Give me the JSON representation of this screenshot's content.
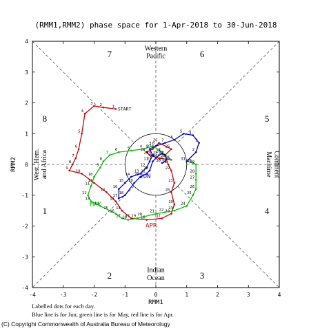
{
  "chart_data": {
    "type": "line",
    "title": "(RMM1,RMM2) phase space for  1-Apr-2018 to 30-Jun-2018",
    "xlabel": "RMM1",
    "ylabel": "RMM2",
    "xlim": [
      -4,
      4
    ],
    "ylim": [
      -4,
      4
    ],
    "xticks": [
      "-4",
      "-3",
      "-2",
      "-1",
      "0",
      "1",
      "2",
      "3",
      "4"
    ],
    "yticks": [
      "-4",
      "-3",
      "-2",
      "-1",
      "0",
      "1",
      "2",
      "3",
      "4"
    ],
    "phases": [
      "1",
      "2",
      "3",
      "4",
      "5",
      "6",
      "7",
      "8"
    ],
    "regions": {
      "top": [
        "Western",
        "Pacific"
      ],
      "bottom": [
        "Indian",
        "Ocean"
      ],
      "left": [
        "West. Hem.",
        "and Africa"
      ],
      "right": [
        "Maritime",
        "Continent"
      ]
    },
    "start_label": "START",
    "series": [
      {
        "name": "APR",
        "color": "#cc0000",
        "points": [
          [
            -1.3,
            1.8
          ],
          [
            -1.7,
            1.85
          ],
          [
            -2.0,
            1.9
          ],
          [
            -2.3,
            1.65
          ],
          [
            -2.4,
            1.0
          ],
          [
            -2.5,
            0.5
          ],
          [
            -2.6,
            0.2
          ],
          [
            -2.7,
            0.0
          ],
          [
            -2.8,
            -0.2
          ],
          [
            -2.4,
            -0.3
          ],
          [
            -2.0,
            -0.6
          ],
          [
            -1.6,
            -0.9
          ],
          [
            -1.3,
            -1.2
          ],
          [
            -1.1,
            -1.5
          ],
          [
            -0.8,
            -1.75
          ],
          [
            -0.3,
            -1.8
          ],
          [
            0.2,
            -1.75
          ],
          [
            0.5,
            -1.6
          ],
          [
            0.6,
            -1.3
          ],
          [
            0.5,
            -0.9
          ],
          [
            0.6,
            -0.6
          ],
          [
            0.5,
            -0.2
          ],
          [
            0.4,
            0.0
          ],
          [
            0.3,
            0.3
          ],
          [
            0.5,
            0.5
          ],
          [
            0.1,
            0.7
          ],
          [
            -0.1,
            0.5
          ],
          [
            -0.3,
            0.4
          ],
          [
            -0.2,
            0.3
          ],
          [
            0.1,
            0.2
          ],
          [
            0.5,
            0.15
          ]
        ],
        "labels": [
          [
            1,
            "1"
          ],
          [
            2,
            "2"
          ],
          [
            3,
            "3"
          ],
          [
            4,
            "4"
          ],
          [
            5,
            "5"
          ],
          [
            6,
            "6"
          ],
          [
            7,
            "7"
          ],
          [
            8,
            "8"
          ],
          [
            9,
            "9"
          ],
          [
            10,
            "10"
          ],
          [
            11,
            "11"
          ],
          [
            12,
            "12"
          ],
          [
            13,
            "13"
          ],
          [
            14,
            "14"
          ],
          [
            15,
            "15"
          ],
          [
            16,
            "16"
          ],
          [
            17,
            "17"
          ],
          [
            18,
            "18"
          ],
          [
            19,
            "19"
          ],
          [
            20,
            "20"
          ],
          [
            21,
            "21"
          ],
          [
            22,
            "22"
          ],
          [
            23,
            "23"
          ],
          [
            24,
            "24"
          ],
          [
            25,
            "25"
          ],
          [
            26,
            "26"
          ],
          [
            27,
            "27"
          ],
          [
            28,
            "28"
          ],
          [
            29,
            "29"
          ],
          [
            30,
            "30"
          ]
        ],
        "end_label": "APR"
      },
      {
        "name": "MAY",
        "color": "#00bb00",
        "points": [
          [
            0.5,
            0.15
          ],
          [
            0.2,
            0.4
          ],
          [
            -0.1,
            0.6
          ],
          [
            -0.4,
            0.5
          ],
          [
            -0.8,
            0.45
          ],
          [
            -1.2,
            0.4
          ],
          [
            -1.5,
            0.3
          ],
          [
            -1.7,
            0.1
          ],
          [
            -1.8,
            -0.1
          ],
          [
            -2.0,
            -0.4
          ],
          [
            -2.1,
            -0.7
          ],
          [
            -2.2,
            -1.0
          ],
          [
            -2.1,
            -1.2
          ],
          [
            -1.8,
            -1.35
          ],
          [
            -1.5,
            -1.5
          ],
          [
            -1.3,
            -1.6
          ],
          [
            -1.1,
            -1.75
          ],
          [
            -0.9,
            -1.8
          ],
          [
            -0.6,
            -1.75
          ],
          [
            -0.4,
            -1.7
          ],
          [
            0.0,
            -1.6
          ],
          [
            0.3,
            -1.55
          ],
          [
            0.6,
            -1.5
          ],
          [
            1.0,
            -1.35
          ],
          [
            1.2,
            -1.0
          ],
          [
            1.3,
            -0.8
          ],
          [
            1.3,
            -0.5
          ],
          [
            1.3,
            -0.3
          ],
          [
            1.3,
            0.0
          ],
          [
            1.2,
            0.05
          ],
          [
            1.0,
            0.1
          ]
        ],
        "labels": [
          [
            1,
            "1"
          ],
          [
            2,
            "2"
          ],
          [
            3,
            "3"
          ],
          [
            4,
            "4"
          ],
          [
            5,
            "5"
          ],
          [
            6,
            "6"
          ],
          [
            7,
            "7"
          ],
          [
            8,
            "8"
          ],
          [
            9,
            "9"
          ],
          [
            10,
            "10"
          ],
          [
            11,
            "11"
          ],
          [
            12,
            "12"
          ],
          [
            13,
            "13"
          ],
          [
            14,
            "14"
          ],
          [
            15,
            "15"
          ],
          [
            16,
            "16"
          ],
          [
            17,
            "17"
          ],
          [
            18,
            "18"
          ],
          [
            19,
            "19"
          ],
          [
            20,
            "20"
          ],
          [
            21,
            "21"
          ],
          [
            22,
            "22"
          ],
          [
            23,
            "23"
          ],
          [
            24,
            "24"
          ],
          [
            25,
            "25"
          ],
          [
            26,
            "26"
          ],
          [
            27,
            "27"
          ],
          [
            28,
            "28"
          ],
          [
            29,
            "29"
          ],
          [
            30,
            "30"
          ],
          [
            31,
            "31"
          ]
        ],
        "end_label": "MAY"
      },
      {
        "name": "JUN",
        "color": "#0000cc",
        "points": [
          [
            1.0,
            0.1
          ],
          [
            1.3,
            0.4
          ],
          [
            1.4,
            0.7
          ],
          [
            1.2,
            0.95
          ],
          [
            0.9,
            1.0
          ],
          [
            0.6,
            0.8
          ],
          [
            0.3,
            0.7
          ],
          [
            0.0,
            0.6
          ],
          [
            -0.2,
            0.5
          ],
          [
            -0.1,
            0.3
          ],
          [
            -0.2,
            0.1
          ],
          [
            -0.3,
            -0.1
          ],
          [
            -0.5,
            -0.3
          ],
          [
            -0.8,
            -0.4
          ],
          [
            -1.0,
            -0.6
          ],
          [
            -1.2,
            -0.8
          ],
          [
            -1.2,
            -1.1
          ],
          [
            -1.0,
            -1.0
          ],
          [
            -0.7,
            -0.6
          ],
          [
            -0.5,
            -0.4
          ],
          [
            -0.3,
            -0.3
          ],
          [
            -0.2,
            -0.2
          ],
          [
            -0.1,
            0.1
          ],
          [
            0.0,
            0.2
          ],
          [
            0.1,
            0.3
          ],
          [
            0.2,
            0.35
          ],
          [
            0.3,
            0.3
          ],
          [
            0.35,
            0.2
          ],
          [
            0.3,
            0.1
          ],
          [
            0.2,
            0.05
          ]
        ],
        "labels": [
          [
            1,
            "1"
          ],
          [
            2,
            "2"
          ],
          [
            3,
            "3"
          ],
          [
            4,
            "4"
          ],
          [
            5,
            "5"
          ],
          [
            6,
            "6"
          ],
          [
            7,
            "7"
          ],
          [
            8,
            "8"
          ],
          [
            9,
            "9"
          ],
          [
            10,
            "10"
          ],
          [
            11,
            "11"
          ],
          [
            12,
            "12"
          ],
          [
            13,
            "13"
          ],
          [
            14,
            "14"
          ],
          [
            15,
            "15"
          ],
          [
            16,
            "16"
          ],
          [
            17,
            "17"
          ],
          [
            18,
            "18"
          ],
          [
            19,
            "19"
          ],
          [
            20,
            "20"
          ],
          [
            21,
            "21"
          ],
          [
            22,
            "22"
          ],
          [
            23,
            "23"
          ],
          [
            24,
            "24"
          ],
          [
            25,
            "25"
          ],
          [
            26,
            "26"
          ],
          [
            27,
            "27"
          ],
          [
            28,
            "28"
          ],
          [
            29,
            "29"
          ],
          [
            30,
            "30"
          ]
        ],
        "end_label": "JUN"
      }
    ],
    "footer_lines": [
      "Labelled dots for each day.",
      "Blue line is for Jun, green line is for May, red line is for Apr."
    ],
    "copyright": "(C) Copyright Commonwealth of Australia Bureau of Meteorology",
    "colors": {
      "axes": "#000000",
      "guides": "#555555"
    }
  }
}
